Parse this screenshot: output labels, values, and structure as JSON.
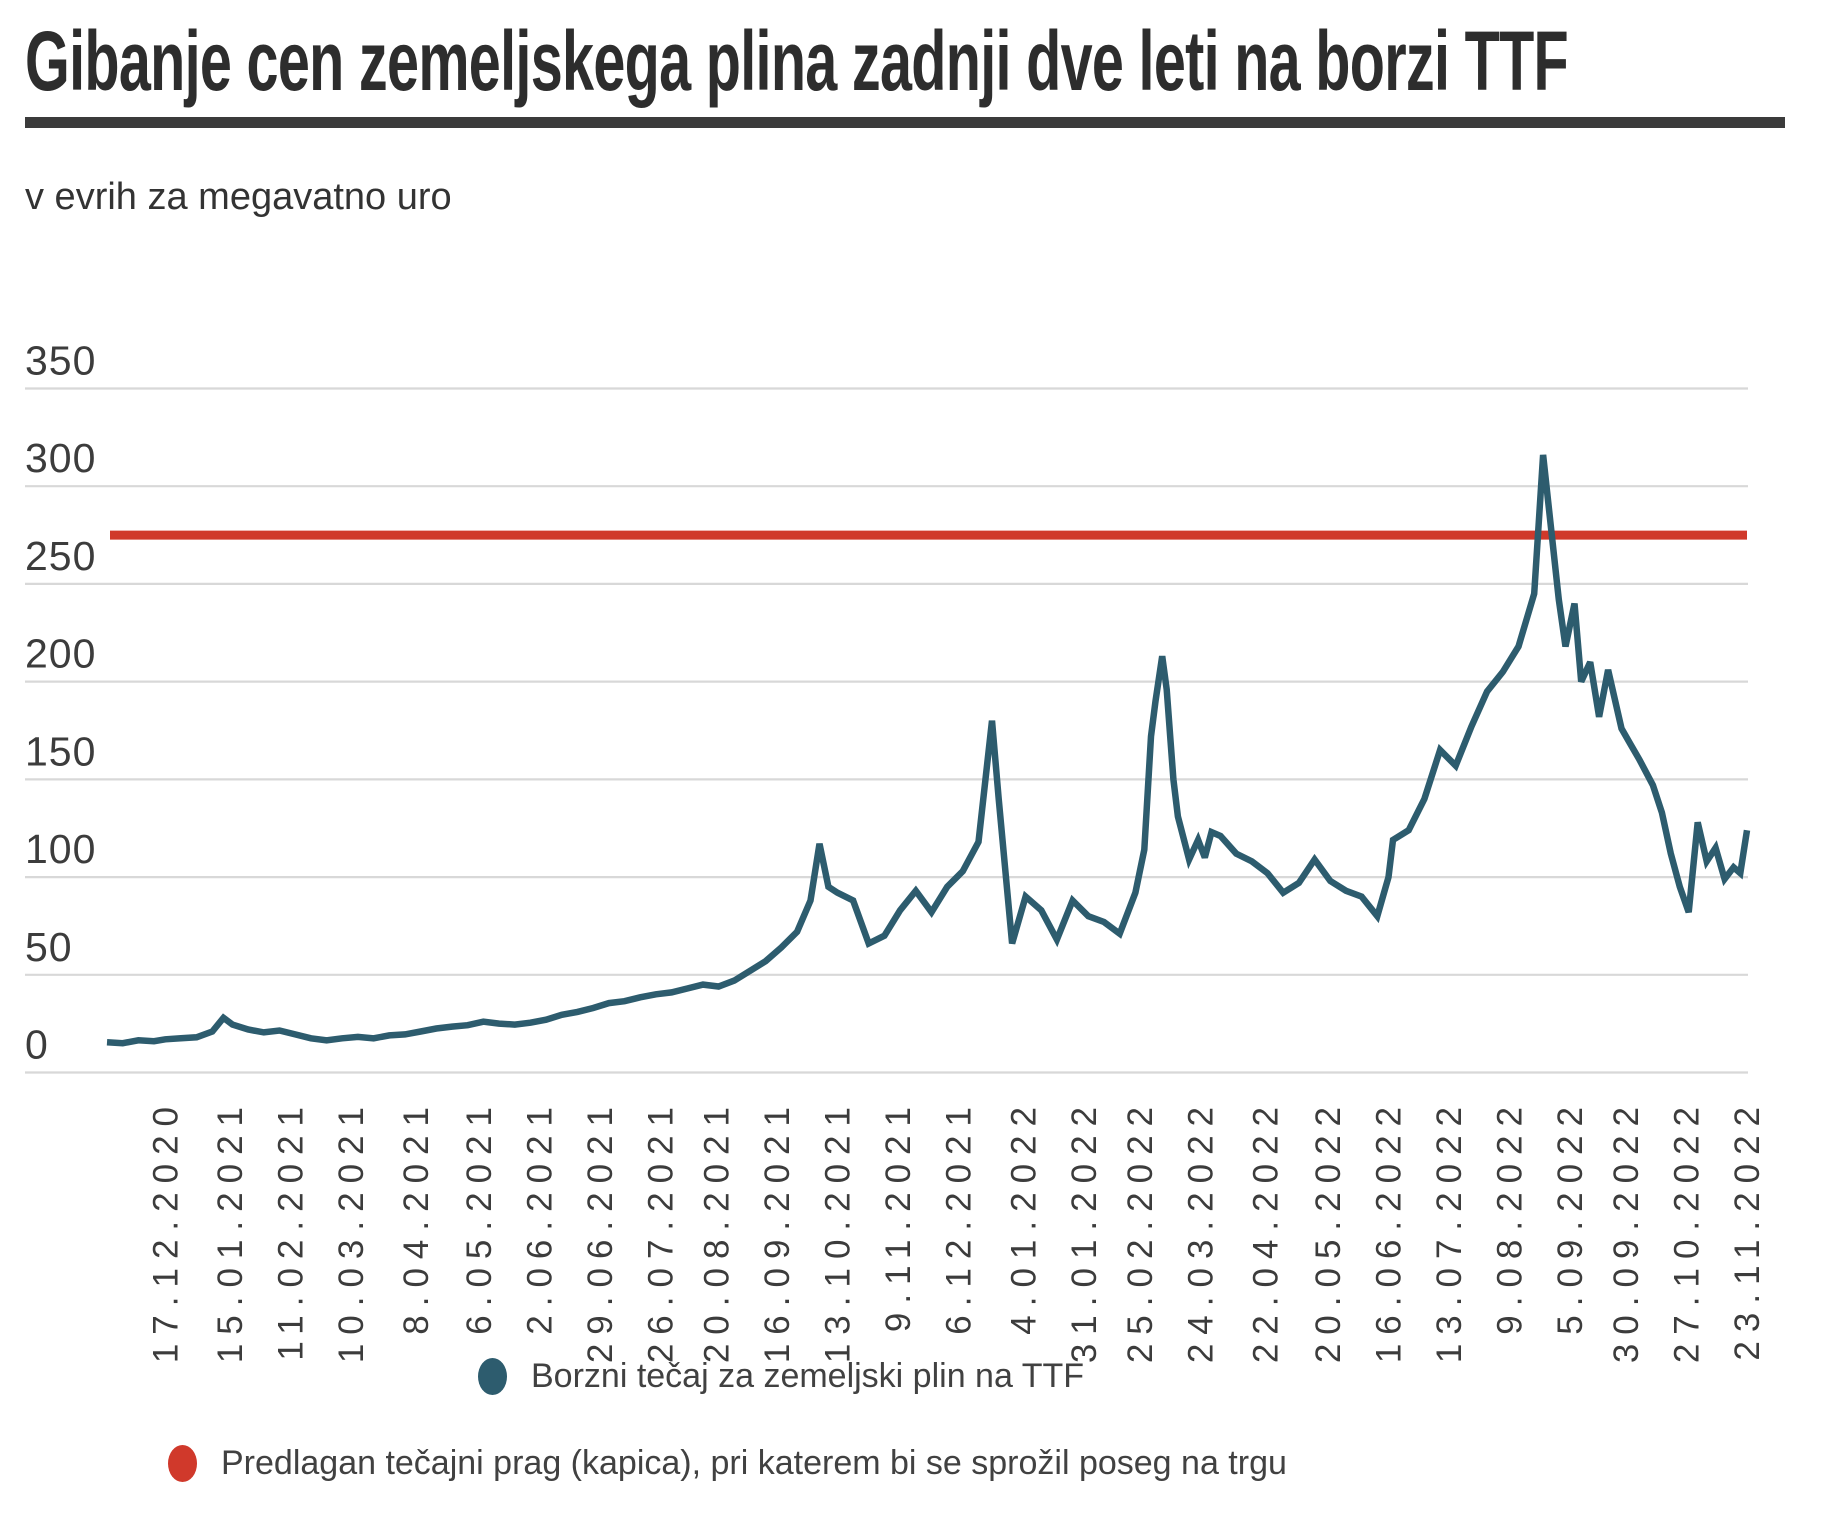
{
  "header": {
    "title": "Gibanje cen zemeljskega plina zadnji dve leti na borzi TTF",
    "subtitle": "v evrih za megavatno uro"
  },
  "legend": {
    "series_label": "Borzni tečaj za zemeljski plin na TTF",
    "cap_label": "Predlagan tečajni prag (kapica), pri katerem bi se sprožil poseg na trgu"
  },
  "colors": {
    "series_line": "#2d5c6e",
    "cap_line": "#d0392b",
    "grid": "#d8d8d8",
    "axis_text": "#3c3c3c",
    "title_text": "#2d2d2d",
    "rule": "#3b3b3b"
  },
  "chart_data": {
    "type": "line",
    "title": "Gibanje cen zemeljskega plina zadnji dve leti na borzi TTF",
    "ylabel": "v evrih za megavatno uro",
    "xlabel": "",
    "grid": true,
    "legend_position": "bottom",
    "ylim": [
      0,
      350
    ],
    "y_ticks": [
      0,
      50,
      100,
      150,
      200,
      250,
      300,
      350
    ],
    "x_domain_days": [
      0,
      732
    ],
    "x_tick_labels": [
      "17.12.2020",
      "15.01.2021",
      "11.02.2021",
      "10.03.2021",
      "8.04.2021",
      "6.05.2021",
      "2.06.2021",
      "29.06.2021",
      "26.07.2021",
      "20.08.2021",
      "16.09.2021",
      "13.10.2021",
      "9.11.2021",
      "6.12.2021",
      "4.01.2022",
      "31.01.2022",
      "25.02.2022",
      "24.03.2022",
      "22.04.2022",
      "20.05.2022",
      "16.06.2022",
      "13.07.2022",
      "9.08.2022",
      "5.09.2022",
      "30.09.2022",
      "27.10.2022",
      "23.11.2022"
    ],
    "x_tick_days": [
      26,
      55,
      82,
      109,
      138,
      166,
      193,
      220,
      247,
      272,
      299,
      326,
      353,
      380,
      409,
      436,
      461,
      488,
      517,
      545,
      572,
      599,
      626,
      653,
      678,
      705,
      732
    ],
    "cap_line_value": 275,
    "series": [
      {
        "name": "Borzni tečaj za zemeljski plin na TTF",
        "points": [
          [
            0,
            15.5
          ],
          [
            7,
            15
          ],
          [
            14,
            16.5
          ],
          [
            21,
            16
          ],
          [
            26,
            17
          ],
          [
            33,
            17.5
          ],
          [
            40,
            18
          ],
          [
            47,
            21
          ],
          [
            52,
            28
          ],
          [
            56,
            24.5
          ],
          [
            63,
            22
          ],
          [
            70,
            20.5
          ],
          [
            77,
            21.5
          ],
          [
            84,
            19.5
          ],
          [
            91,
            17.5
          ],
          [
            98,
            16.5
          ],
          [
            105,
            17.5
          ],
          [
            112,
            18.2
          ],
          [
            119,
            17.5
          ],
          [
            126,
            19
          ],
          [
            133,
            19.5
          ],
          [
            140,
            21
          ],
          [
            147,
            22.5
          ],
          [
            154,
            23.5
          ],
          [
            161,
            24.2
          ],
          [
            168,
            26
          ],
          [
            175,
            25
          ],
          [
            182,
            24.5
          ],
          [
            189,
            25.5
          ],
          [
            196,
            27
          ],
          [
            203,
            29.5
          ],
          [
            210,
            31
          ],
          [
            217,
            33
          ],
          [
            224,
            35.5
          ],
          [
            231,
            36.5
          ],
          [
            238,
            38.5
          ],
          [
            245,
            40
          ],
          [
            252,
            41
          ],
          [
            259,
            43
          ],
          [
            266,
            45
          ],
          [
            273,
            44
          ],
          [
            280,
            47
          ],
          [
            287,
            52
          ],
          [
            294,
            57
          ],
          [
            301,
            64
          ],
          [
            308,
            72
          ],
          [
            314,
            88
          ],
          [
            318,
            117
          ],
          [
            322,
            95
          ],
          [
            326,
            92
          ],
          [
            333,
            88
          ],
          [
            340,
            66
          ],
          [
            347,
            70
          ],
          [
            354,
            83
          ],
          [
            361,
            93
          ],
          [
            368,
            82
          ],
          [
            375,
            95
          ],
          [
            382,
            103
          ],
          [
            389,
            118
          ],
          [
            395,
            180
          ],
          [
            398,
            140
          ],
          [
            404,
            66
          ],
          [
            410,
            90
          ],
          [
            417,
            83
          ],
          [
            424,
            68
          ],
          [
            431,
            88
          ],
          [
            438,
            80
          ],
          [
            445,
            77
          ],
          [
            452,
            71
          ],
          [
            459,
            92
          ],
          [
            463,
            114
          ],
          [
            466,
            172
          ],
          [
            468,
            190
          ],
          [
            471,
            213
          ],
          [
            473,
            196
          ],
          [
            476,
            150
          ],
          [
            478,
            131
          ],
          [
            483,
            109
          ],
          [
            487,
            119
          ],
          [
            490,
            110
          ],
          [
            493,
            123
          ],
          [
            497,
            121
          ],
          [
            504,
            112
          ],
          [
            511,
            108
          ],
          [
            518,
            102
          ],
          [
            525,
            92
          ],
          [
            532,
            97
          ],
          [
            539,
            109
          ],
          [
            546,
            98
          ],
          [
            553,
            93
          ],
          [
            560,
            90
          ],
          [
            567,
            80
          ],
          [
            572,
            100
          ],
          [
            574,
            119
          ],
          [
            581,
            124
          ],
          [
            588,
            140
          ],
          [
            595,
            165
          ],
          [
            602,
            157
          ],
          [
            609,
            177
          ],
          [
            616,
            195
          ],
          [
            623,
            205
          ],
          [
            630,
            218
          ],
          [
            637,
            245
          ],
          [
            641,
            316
          ],
          [
            648,
            242
          ],
          [
            651,
            218
          ],
          [
            655,
            240
          ],
          [
            658,
            200
          ],
          [
            662,
            210
          ],
          [
            666,
            182
          ],
          [
            670,
            206
          ],
          [
            676,
            176
          ],
          [
            680,
            168
          ],
          [
            684,
            160
          ],
          [
            690,
            147
          ],
          [
            694,
            133
          ],
          [
            698,
            112
          ],
          [
            702,
            95
          ],
          [
            706,
            82
          ],
          [
            710,
            128
          ],
          [
            714,
            108
          ],
          [
            718,
            115
          ],
          [
            722,
            99
          ],
          [
            726,
            105
          ],
          [
            729,
            102
          ],
          [
            732,
            124
          ]
        ]
      },
      {
        "name": "Predlagan tečajni prag (kapica), pri katerem bi se sprožil poseg na trgu",
        "constant_value": 275
      }
    ]
  }
}
